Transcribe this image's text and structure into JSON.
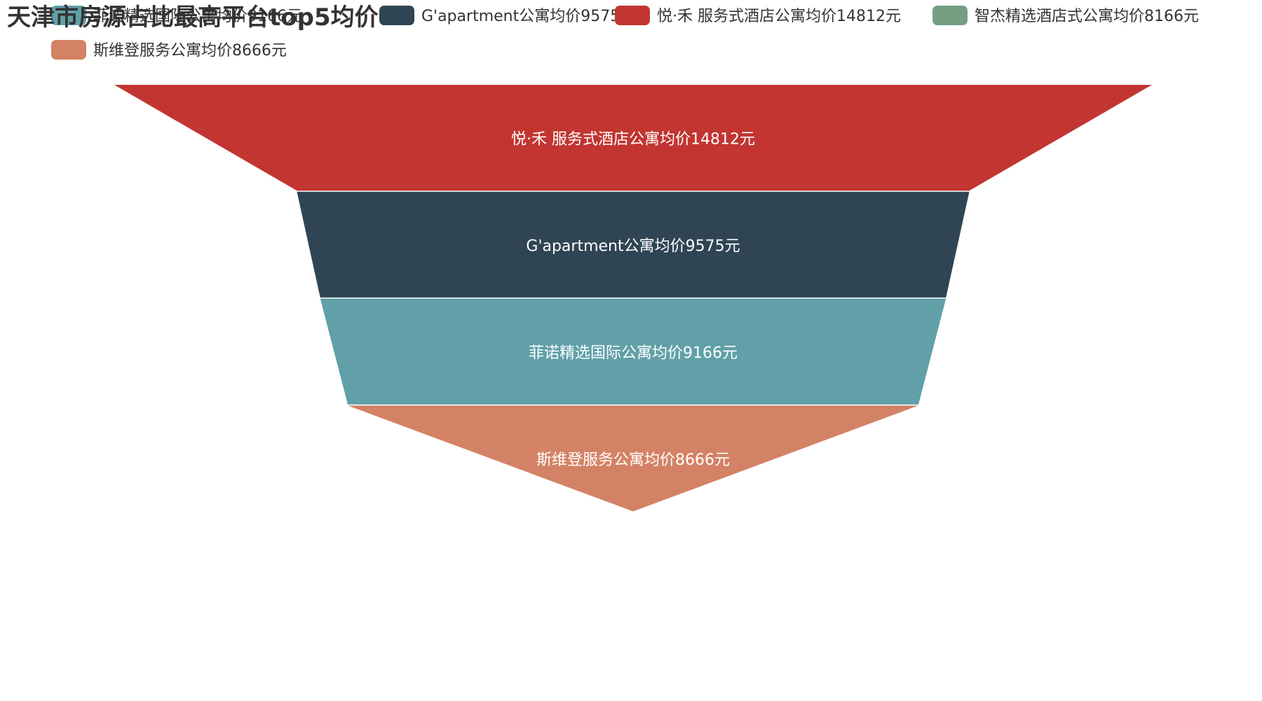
{
  "chart_data": {
    "type": "funnel",
    "title": "天津市房源占比最高平台top5均价",
    "legend_position": "top",
    "legend": [
      {
        "name": "菲诺精选国际公寓均价9166元",
        "color": "#61a0a8"
      },
      {
        "name": "G'apartment公寓均价9575元",
        "color": "#2f4554"
      },
      {
        "name": "悦·禾 服务式酒店公寓均价14812元",
        "color": "#c23531"
      },
      {
        "name": "智杰精选酒店式公寓均价8166元",
        "color": "#749f83"
      },
      {
        "name": "斯维登服务公寓均价8666元",
        "color": "#d48265"
      }
    ],
    "series": [
      {
        "name": "悦·禾 服务式酒店公寓均价14812元",
        "value": 14812,
        "color": "#c23531"
      },
      {
        "name": "G'apartment公寓均价9575元",
        "value": 9575,
        "color": "#2f4554"
      },
      {
        "name": "菲诺精选国际公寓均价9166元",
        "value": 9166,
        "color": "#61a0a8"
      },
      {
        "name": "斯维登服务公寓均价8666元",
        "value": 8666,
        "color": "#d48265"
      },
      {
        "name": "智杰精选酒店式公寓均价8166元",
        "value": 8166,
        "color": "#749f83"
      }
    ],
    "widths_relative": [
      1.0,
      0.648,
      0.603,
      0.55,
      0.0
    ]
  }
}
